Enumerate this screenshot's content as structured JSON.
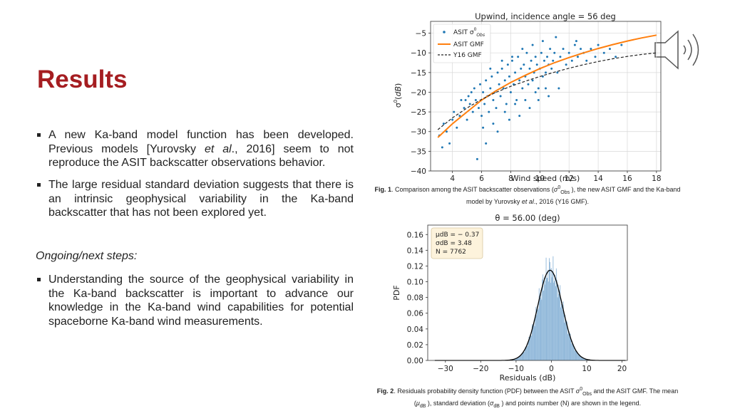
{
  "slide": {
    "title": "Results",
    "bullets": [
      {
        "pre": "A new Ka-band model function has been developed. Previous models [Yurovsky ",
        "em": "et al",
        "post": "., 2016] seem to not reproduce the ASIT backscatter observations behavior."
      },
      {
        "text": "The large residual standard deviation suggests that there is an intrinsic geophysical variability in the Ka-band backscatter that has not been explored yet."
      },
      {
        "text": "Understanding the source of the geophysical variability in the Ka-band backscatter is important to advance our knowledge in the Ka-band wind capabilities for potential spaceborne Ka-band wind measurements."
      }
    ],
    "next_steps_label": "Ongoing/next steps:",
    "icon": "speaker-icon"
  },
  "captions": {
    "fig1": {
      "label": "Fig. 1",
      "a": ". Comparison among the ASIT backscatter observations (",
      "sym": "σ",
      "sup": "0",
      "sub": "Obs",
      "b": " ), the new ASIT GMF and the Ka-band model by Yurovsky ",
      "em": "et al",
      "c": "., 2016 (Y16 GMF)."
    },
    "fig2": {
      "label": "Fig. 2",
      "a": ". Residuals probability density function  (PDF) between the ASIT ",
      "sym": "σ",
      "sup": "0",
      "sub": "Obs",
      "b": "  and the ASIT GMF. The mean (",
      "mu": "μ",
      "mu_sub": "dB",
      "c": " ), standard deviation (",
      "sd": "σ",
      "sd_sub": "dB",
      "d": " ) and points number (N) are shown in the legend."
    }
  },
  "chart_data": [
    {
      "type": "scatter",
      "title": "Upwind, incidence angle = 56 deg",
      "xlabel": "Wind speed (m/s)",
      "ylabel": "σ0(dB)",
      "xlim": [
        2.5,
        18.3
      ],
      "ylim": [
        -40,
        -2
      ],
      "xticks": [
        4,
        6,
        8,
        10,
        12,
        14,
        16,
        18
      ],
      "yticks": [
        -5,
        -10,
        -15,
        -20,
        -25,
        -30,
        -35,
        -40
      ],
      "grid": true,
      "legend_position": "top-left",
      "legend": [
        "ASIT σ0Obs",
        "ASIT GMF",
        "Y16 GMF"
      ],
      "series": [
        {
          "name": "ASIT σ0Obs",
          "kind": "scatter",
          "color": "#1f77b4",
          "x": [
            3.1,
            3.3,
            3.4,
            3.6,
            3.8,
            4.0,
            4.1,
            4.3,
            4.5,
            4.6,
            4.8,
            5.0,
            5.1,
            5.2,
            5.4,
            5.5,
            5.6,
            5.8,
            5.9,
            6.0,
            6.1,
            6.2,
            6.3,
            6.4,
            6.5,
            6.6,
            6.7,
            6.8,
            6.9,
            7.0,
            7.1,
            7.2,
            7.3,
            7.4,
            7.5,
            7.6,
            7.7,
            7.8,
            7.9,
            8.0,
            8.1,
            8.2,
            8.3,
            8.4,
            8.5,
            8.6,
            8.7,
            8.8,
            8.9,
            9.0,
            9.1,
            9.2,
            9.3,
            9.4,
            9.5,
            9.6,
            9.7,
            9.8,
            9.9,
            10.0,
            10.1,
            10.2,
            10.3,
            10.4,
            10.5,
            10.6,
            10.7,
            10.8,
            10.9,
            11.0,
            11.2,
            11.4,
            11.6,
            11.8,
            12.0,
            12.2,
            12.4,
            12.6,
            12.8,
            13.0,
            13.2,
            13.5,
            13.8,
            14.0,
            14.4,
            14.8,
            15.2,
            15.6,
            5.7,
            6.3,
            7.1,
            7.9,
            8.6,
            9.3,
            9.9,
            10.6,
            11.3,
            6.1,
            6.8,
            7.6,
            8.3,
            9.0,
            9.7,
            10.4,
            4.9,
            5.3,
            6.6,
            7.4,
            8.1,
            8.8,
            9.5,
            10.2,
            11.1,
            12.5
          ],
          "y": [
            -31,
            -34,
            -28,
            -30,
            -33,
            -27,
            -25,
            -29,
            -26,
            -22,
            -24,
            -27,
            -21,
            -23,
            -25,
            -19,
            -22,
            -24,
            -18,
            -26,
            -20,
            -23,
            -17,
            -21,
            -25,
            -19,
            -16,
            -22,
            -20,
            -24,
            -15,
            -18,
            -21,
            -14,
            -19,
            -17,
            -23,
            -13,
            -16,
            -20,
            -12,
            -18,
            -15,
            -22,
            -11,
            -17,
            -14,
            -19,
            -13,
            -16,
            -10,
            -18,
            -14,
            -12,
            -17,
            -15,
            -11,
            -13,
            -19,
            -14,
            -10,
            -16,
            -12,
            -15,
            -11,
            -13,
            -9,
            -14,
            -12,
            -10,
            -15,
            -11,
            -9,
            -13,
            -10,
            -12,
            -8,
            -11,
            -9,
            -10,
            -12,
            -9,
            -11,
            -8,
            -10,
            -9,
            -11,
            -8,
            -37,
            -33,
            -30,
            -27,
            -26,
            -24,
            -22,
            -21,
            -19,
            -29,
            -28,
            -25,
            -23,
            -22,
            -20,
            -19,
            -22,
            -20,
            -14,
            -12,
            -11,
            -9,
            -8,
            -7,
            -6,
            -7
          ]
        },
        {
          "name": "ASIT GMF",
          "kind": "line",
          "color": "#ff7f0e",
          "x": [
            3,
            4,
            5,
            6,
            7,
            8,
            9,
            10,
            11,
            12,
            13,
            14,
            15,
            16,
            17,
            18
          ],
          "y": [
            -31.5,
            -28,
            -25,
            -22,
            -19.6,
            -17.5,
            -15.7,
            -14,
            -12.5,
            -11.2,
            -10,
            -8.9,
            -7.9,
            -7,
            -6.2,
            -5.5
          ]
        },
        {
          "name": "Y16 GMF",
          "kind": "dashed-line",
          "color": "#222222",
          "x": [
            3,
            4,
            5,
            6,
            7,
            8,
            9,
            10,
            11,
            12,
            13,
            14,
            15,
            16,
            17,
            18
          ],
          "y": [
            -29.5,
            -26.5,
            -24,
            -21.8,
            -20,
            -18.5,
            -17.2,
            -16,
            -14.9,
            -13.9,
            -13,
            -12.2,
            -11.5,
            -10.9,
            -10.4,
            -10
          ]
        }
      ]
    },
    {
      "type": "histogram",
      "title": "θ = 56.00 (deg)",
      "xlabel": "Residuals (dB)",
      "ylabel": "PDF",
      "xlim": [
        -35,
        21.5
      ],
      "ylim": [
        0,
        0.172
      ],
      "xticks": [
        -30,
        -20,
        -10,
        0,
        10,
        20
      ],
      "yticks": [
        0.0,
        0.02,
        0.04,
        0.06,
        0.08,
        0.1,
        0.12,
        0.14,
        0.16
      ],
      "grid": false,
      "legend_position": "top-left",
      "legend_lines": [
        "μdB = − 0.37",
        "σdB = 3.48",
        "N = 7762"
      ],
      "fit_curve": {
        "mean": -0.37,
        "std": 3.48,
        "color": "#000000"
      },
      "bar_color": "#8fb7d9"
    }
  ]
}
